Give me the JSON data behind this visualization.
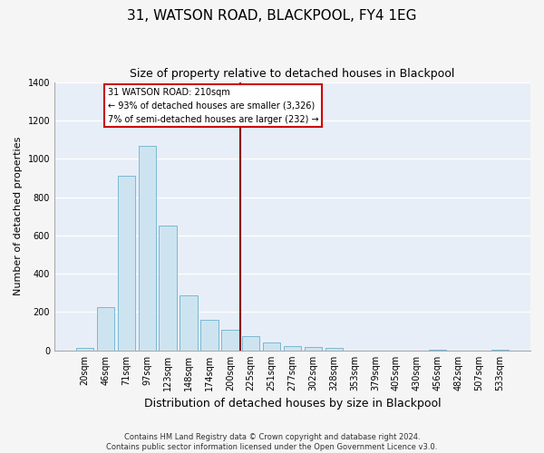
{
  "title": "31, WATSON ROAD, BLACKPOOL, FY4 1EG",
  "subtitle": "Size of property relative to detached houses in Blackpool",
  "xlabel": "Distribution of detached houses by size in Blackpool",
  "ylabel": "Number of detached properties",
  "bar_labels": [
    "20sqm",
    "46sqm",
    "71sqm",
    "97sqm",
    "123sqm",
    "148sqm",
    "174sqm",
    "200sqm",
    "225sqm",
    "251sqm",
    "277sqm",
    "302sqm",
    "328sqm",
    "353sqm",
    "379sqm",
    "405sqm",
    "430sqm",
    "456sqm",
    "482sqm",
    "507sqm",
    "533sqm"
  ],
  "bar_values": [
    15,
    228,
    910,
    1065,
    650,
    285,
    160,
    110,
    75,
    42,
    25,
    18,
    15,
    0,
    0,
    0,
    0,
    5,
    0,
    0,
    5
  ],
  "bar_color": "#cde4f0",
  "bar_edge_color": "#7ab8d4",
  "vline_color": "#8b0000",
  "vline_x_index": 8.0,
  "annotation_title": "31 WATSON ROAD: 210sqm",
  "annotation_line1": "← 93% of detached houses are smaller (3,326)",
  "annotation_line2": "7% of semi-detached houses are larger (232) →",
  "annotation_box_facecolor": "#ffffff",
  "annotation_box_edgecolor": "#cc0000",
  "ylim": [
    0,
    1400
  ],
  "yticks": [
    0,
    200,
    400,
    600,
    800,
    1000,
    1200,
    1400
  ],
  "footnote1": "Contains HM Land Registry data © Crown copyright and database right 2024.",
  "footnote2": "Contains public sector information licensed under the Open Government Licence v3.0.",
  "plot_bg_color": "#e8eef8",
  "fig_bg_color": "#f5f5f5",
  "grid_color": "#ffffff",
  "title_fontsize": 11,
  "subtitle_fontsize": 9,
  "axis_label_fontsize": 8,
  "tick_fontsize": 7,
  "footnote_fontsize": 6
}
